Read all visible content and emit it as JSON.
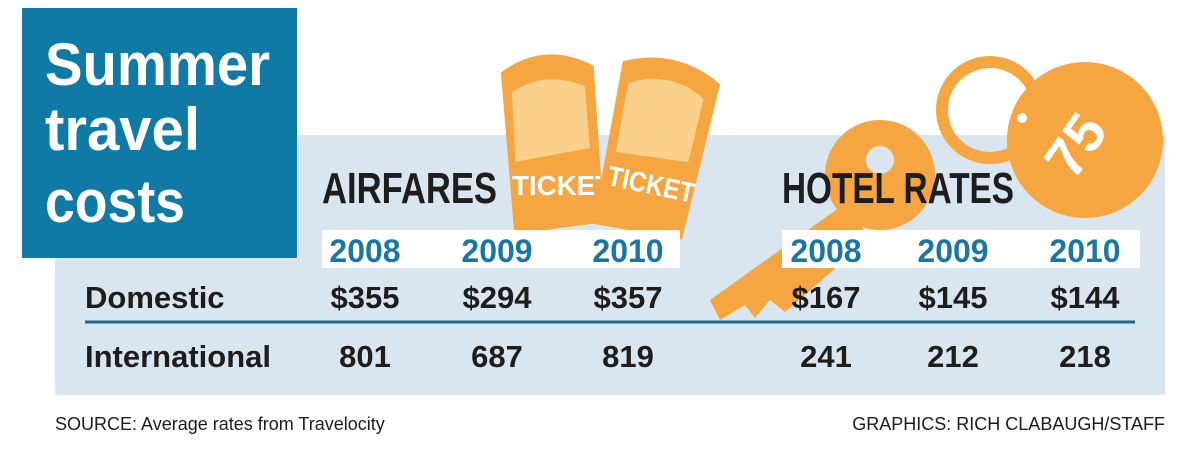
{
  "title": [
    "Summer",
    "travel",
    "costs"
  ],
  "illustration": {
    "tickets": [
      "TICKET",
      "TICKET"
    ],
    "key_tag": "75"
  },
  "table": {
    "groups": [
      {
        "label": "AIRFARES",
        "years": [
          "2008",
          "2009",
          "2010"
        ]
      },
      {
        "label": "HOTEL RATES",
        "years": [
          "2008",
          "2009",
          "2010"
        ]
      }
    ],
    "rows": [
      {
        "label": "Domestic",
        "cells": [
          "$355",
          "$294",
          "$357",
          "$167",
          "$145",
          "$144"
        ]
      },
      {
        "label": "International",
        "cells": [
          "801",
          "687",
          "819",
          "241",
          "212",
          "218"
        ]
      }
    ]
  },
  "footer": {
    "source": "SOURCE: Average rates from Travelocity",
    "credit": "GRAPHICS: RICH CLABAUGH/STAFF"
  }
}
